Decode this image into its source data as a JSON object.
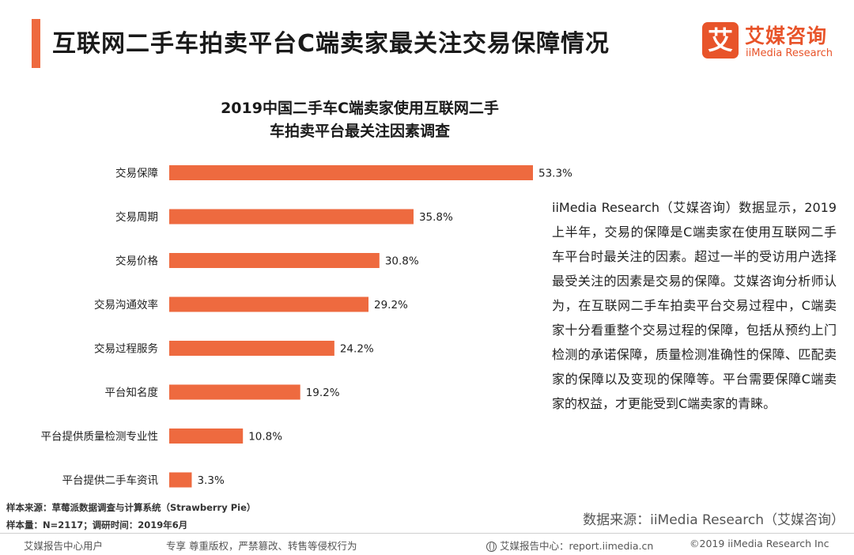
{
  "header": {
    "title": "互联网二手车拍卖平台C端卖家最关注交易保障情况",
    "logo_mark": "艾",
    "logo_cn": "艾媒咨询",
    "logo_en": "iiMedia Research"
  },
  "colors": {
    "accent": "#ee6a3f",
    "bar": "#ee6a3f",
    "logo": "#e8542a"
  },
  "chart_data": {
    "type": "bar",
    "orientation": "horizontal",
    "title_line1": "2019中国二手车C端卖家使用互联网二手",
    "title_line2": "车拍卖平台最关注因素调查",
    "categories": [
      "交易保障",
      "交易周期",
      "交易价格",
      "交易沟通效率",
      "交易过程服务",
      "平台知名度",
      "平台提供质量检测专业性",
      "平台提供二手车资讯"
    ],
    "values": [
      53.3,
      35.8,
      30.8,
      29.2,
      24.2,
      19.2,
      10.8,
      3.3
    ],
    "value_labels": [
      "53.3%",
      "35.8%",
      "30.8%",
      "29.2%",
      "24.2%",
      "19.2%",
      "10.8%",
      "3.3%"
    ],
    "unit": "%",
    "xlim": [
      0,
      53.3
    ],
    "grid": false,
    "legend": "none"
  },
  "analysis": {
    "text": "iiMedia Research（艾媒咨询）数据显示，2019上半年，交易的保障是C端卖家在使用互联网二手车平台时最关注的因素。超过一半的受访用户选择最受关注的因素是交易的保障。艾媒咨询分析师认为，在互联网二手车拍卖平台交易过程中，C端卖家十分看重整个交易过程的保障，包括从预约上门检测的承诺保障，质量检测准确性的保障、匹配卖家的保障以及变现的保障等。平台需要保障C端卖家的权益，才更能受到C端卖家的青睐。"
  },
  "notes": {
    "sample_source": "样本来源：草莓派数据调查与计算系统（Strawberry Pie）",
    "sample_size": "样本量：N=2117；调研时间：2019年6月",
    "data_source": "数据来源：iiMedia Research（艾媒咨询）"
  },
  "footer": {
    "user": "艾媒报告中心用户",
    "copyright_notice": "专享 尊重版权，严禁篡改、转售等侵权行为",
    "center": "艾媒报告中心：report.iimedia.cn",
    "copyright": "©2019  iiMedia Research  Inc"
  }
}
